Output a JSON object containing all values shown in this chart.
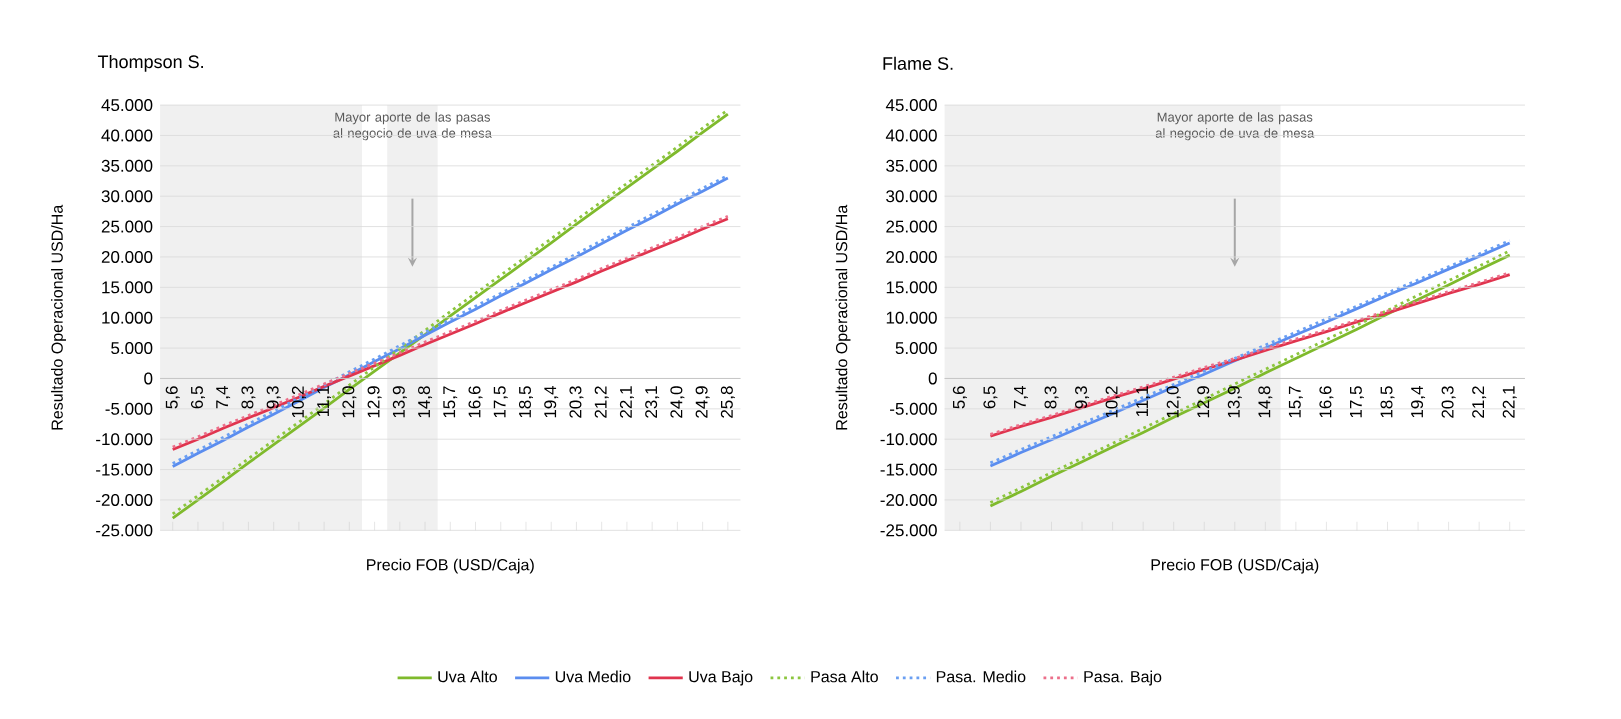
{
  "chart_data": [
    {
      "type": "line",
      "title": "Thompson S.",
      "xlabel": "Precio FOB (USD/Caja)",
      "ylabel": "Resultado  Operacional USD/Ha",
      "categories": [
        "5,6",
        "6,5",
        "7,4",
        "8,3",
        "9,3",
        "10,2",
        "11,1",
        "12,0",
        "12,9",
        "13,9",
        "14,8",
        "15,7",
        "16,6",
        "17,5",
        "18,5",
        "19,4",
        "20,3",
        "21,2",
        "22,1",
        "23,1",
        "24,0",
        "24,9",
        "25,8"
      ],
      "ylim": [
        -25000,
        45000
      ],
      "yticks": [
        {
          "value": -25000,
          "label": "-25.000"
        },
        {
          "value": -20000,
          "label": "-20.000"
        },
        {
          "value": -15000,
          "label": "-15.000"
        },
        {
          "value": -10000,
          "label": "-10.000"
        },
        {
          "value": -5000,
          "label": "-5.000"
        },
        0,
        {
          "value": 5000,
          "label": "5.000"
        },
        {
          "value": 10000,
          "label": "10.000"
        },
        {
          "value": 15000,
          "label": "15.000"
        },
        {
          "value": 20000,
          "label": "20.000"
        },
        {
          "value": 25000,
          "label": "25.000"
        },
        {
          "value": 30000,
          "label": "30.000"
        },
        {
          "value": 35000,
          "label": "35.000"
        },
        {
          "value": 40000,
          "label": "40.000"
        },
        {
          "value": 45000,
          "label": "45.000"
        }
      ],
      "grid": "y",
      "legend": "bottom",
      "bands": [
        {
          "axis": "x",
          "from": "5,6",
          "to": "12,0",
          "color": "#f0f0f0"
        },
        {
          "axis": "x",
          "from": "13,9",
          "to": "14,8",
          "color": "#f0f0f0",
          "label": "Mayor aporte de las pasas al negocio de uva de mesa"
        }
      ],
      "series": [
        {
          "name": "Uva Alto",
          "color": "#7fba2c",
          "line_style": "solid",
          "values": [
            -23000,
            -20000,
            -17000,
            -13900,
            -10900,
            -7900,
            -4900,
            -1800,
            1200,
            4200,
            7200,
            10300,
            13300,
            16300,
            19300,
            22300,
            25400,
            28400,
            31400,
            34400,
            37400,
            40500,
            43500
          ]
        },
        {
          "name": "Uva Medio",
          "color": "#5b8def",
          "line_style": "solid",
          "values": [
            -14500,
            -12300,
            -10200,
            -8000,
            -5900,
            -3700,
            -1500,
            600,
            2800,
            4900,
            7100,
            9300,
            11400,
            13600,
            15700,
            17900,
            20000,
            22200,
            24400,
            26500,
            28700,
            30800,
            33000
          ]
        },
        {
          "name": "Uva Bajo",
          "color": "#e0344e",
          "line_style": "solid",
          "values": [
            -11700,
            -10000,
            -8200,
            -6500,
            -4800,
            -3100,
            -1300,
            400,
            2100,
            3800,
            5600,
            7300,
            9000,
            10800,
            12500,
            14200,
            15900,
            17700,
            19400,
            21100,
            22800,
            24600,
            26300
          ]
        },
        {
          "name": "Pasa Alto",
          "color": "#8cc63f",
          "line_style": "dotted",
          "values": [
            -22300,
            -19300,
            -16300,
            -13200,
            -10200,
            -7200,
            -4200,
            -1100,
            1900,
            4900,
            7900,
            11000,
            14000,
            17000,
            20000,
            23000,
            26100,
            29100,
            32100,
            35100,
            38100,
            41200,
            44200
          ]
        },
        {
          "name": "Pasa. Medio",
          "color": "#6a9ff2",
          "line_style": "dotted",
          "values": [
            -14000,
            -11800,
            -9700,
            -7500,
            -5400,
            -3200,
            -1100,
            1100,
            3200,
            5400,
            7600,
            9700,
            11900,
            14000,
            16200,
            18300,
            20500,
            22700,
            24800,
            27000,
            29100,
            31300,
            33400
          ]
        },
        {
          "name": "Pasa. Bajo",
          "color": "#ec6f8a",
          "line_style": "dotted",
          "values": [
            -11300,
            -9600,
            -7800,
            -6100,
            -4400,
            -2700,
            -900,
            800,
            2500,
            4200,
            6000,
            7700,
            9400,
            11200,
            12900,
            14600,
            16300,
            18100,
            19800,
            21500,
            23200,
            25000,
            26700
          ]
        }
      ]
    },
    {
      "type": "line",
      "title": "Flame S.",
      "xlabel": "Precio FOB (USD/Caja)",
      "ylabel": "Resultado  Operacional USD/Ha",
      "categories": [
        "5,6",
        "6,5",
        "7,4",
        "8,3",
        "9,3",
        "10,2",
        "11,1",
        "12,0",
        "12,9",
        "13,9",
        "14,8",
        "15,7",
        "16,6",
        "17,5",
        "18,5",
        "19,4",
        "20,3",
        "21,2",
        "22,1"
      ],
      "ylim": [
        -25000,
        45000
      ],
      "yticks": [
        {
          "value": -25000,
          "label": "-25.000"
        },
        {
          "value": -20000,
          "label": "-20.000"
        },
        {
          "value": -15000,
          "label": "-15.000"
        },
        {
          "value": -10000,
          "label": "-10.000"
        },
        {
          "value": -5000,
          "label": "-5.000"
        },
        0,
        {
          "value": 5000,
          "label": "5.000"
        },
        {
          "value": 10000,
          "label": "10.000"
        },
        {
          "value": 15000,
          "label": "15.000"
        },
        {
          "value": 20000,
          "label": "20.000"
        },
        {
          "value": 25000,
          "label": "25.000"
        },
        {
          "value": 30000,
          "label": "30.000"
        },
        {
          "value": 35000,
          "label": "35.000"
        },
        {
          "value": 40000,
          "label": "40.000"
        },
        {
          "value": 45000,
          "label": "45.000"
        }
      ],
      "grid": "y",
      "bands": [
        {
          "axis": "x",
          "from": "5,6",
          "to": "12,9",
          "color": "#f0f0f0"
        },
        {
          "axis": "x",
          "from": "12,9",
          "to": "14,8",
          "color": "#f0f0f0",
          "label": "Mayor aporte de las pasas al negocio de uva de mesa"
        }
      ],
      "series": [
        {
          "color": "#7fba2c",
          "line_style": "solid",
          "values": [
            null,
            -21000,
            -18600,
            -16100,
            -13700,
            -11300,
            -8900,
            -6400,
            -4000,
            -1600,
            900,
            3300,
            5700,
            8100,
            10600,
            13000,
            15400,
            17900,
            20300
          ]
        },
        {
          "color": "#5b8def",
          "line_style": "solid",
          "values": [
            null,
            -14400,
            -12200,
            -10100,
            -7900,
            -5800,
            -3600,
            -1400,
            700,
            2900,
            5000,
            7200,
            9300,
            11500,
            13700,
            15800,
            18000,
            20100,
            22300
          ]
        },
        {
          "color": "#e0344e",
          "line_style": "solid",
          "values": [
            null,
            -9500,
            -7900,
            -6400,
            -4800,
            -3200,
            -1700,
            -100,
            1500,
            3000,
            4600,
            6200,
            7700,
            9300,
            10800,
            12400,
            14000,
            15500,
            17100
          ]
        },
        {
          "color": "#8cc63f",
          "line_style": "dotted",
          "values": [
            null,
            -20400,
            -18000,
            -15500,
            -13100,
            -10700,
            -8200,
            -5800,
            -3400,
            -900,
            1500,
            3900,
            6400,
            8800,
            11200,
            13700,
            16100,
            18500,
            21000
          ]
        },
        {
          "color": "#6a9ff2",
          "line_style": "dotted",
          "values": [
            null,
            -13900,
            -11700,
            -9600,
            -7400,
            -5300,
            -3100,
            -1000,
            1200,
            3300,
            5500,
            7600,
            9800,
            11900,
            14100,
            16200,
            18400,
            20500,
            22700
          ]
        },
        {
          "color": "#ec6f8a",
          "line_style": "dotted",
          "values": [
            null,
            -9200,
            -7600,
            -6100,
            -4500,
            -2900,
            -1400,
            200,
            1800,
            3300,
            4900,
            6500,
            8000,
            9600,
            11100,
            12700,
            14300,
            15800,
            17400
          ]
        }
      ]
    }
  ]
}
